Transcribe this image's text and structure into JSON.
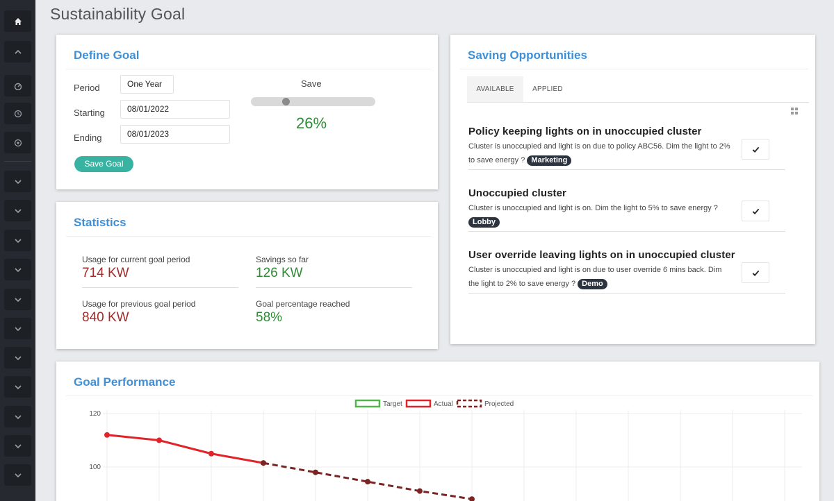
{
  "page": {
    "title": "Sustainability Goal"
  },
  "sidebar": {
    "items": [
      {
        "icon": "home-icon"
      },
      {
        "icon": "chevron-up-icon"
      },
      {
        "icon": "dashboard-icon"
      },
      {
        "icon": "clock-icon"
      },
      {
        "icon": "settings-icon"
      },
      {
        "icon": "chevron-down-icon"
      },
      {
        "icon": "chevron-down-icon"
      },
      {
        "icon": "chevron-down-icon"
      },
      {
        "icon": "chevron-down-icon"
      },
      {
        "icon": "chevron-down-icon"
      },
      {
        "icon": "chevron-down-icon"
      },
      {
        "icon": "chevron-down-icon"
      },
      {
        "icon": "chevron-down-icon"
      },
      {
        "icon": "chevron-down-icon"
      },
      {
        "icon": "chevron-down-icon"
      },
      {
        "icon": "chevron-down-icon"
      }
    ]
  },
  "define_goal": {
    "title": "Define Goal",
    "period_label": "Period",
    "period_value": "One Year",
    "starting_label": "Starting",
    "starting_value": "08/01/2022",
    "ending_label": "Ending",
    "ending_value": "08/01/2023",
    "save_button": "Save Goal",
    "save_label": "Save",
    "save_value": 26,
    "save_percent": "26%"
  },
  "statistics": {
    "title": "Statistics",
    "usage_current_label": "Usage for current goal period",
    "usage_current_value": "714 KW",
    "savings_label": "Savings so far",
    "savings_value": "126 KW",
    "usage_previous_label": "Usage for previous goal period",
    "usage_previous_value": "840 KW",
    "goal_pct_label": "Goal percentage reached",
    "goal_pct_value": "58%"
  },
  "saving_opportunities": {
    "title": "Saving Opportunities",
    "tabs": [
      {
        "label": "AVAILABLE",
        "active": true
      },
      {
        "label": "APPLIED",
        "active": false
      }
    ],
    "items": [
      {
        "title": "Policy keeping lights on in unoccupied cluster",
        "description": "Cluster is unoccupied and light is on due to policy ABC56. Dim the light to 2% to save energy ?",
        "badge": "Marketing"
      },
      {
        "title": "Unoccupied cluster",
        "description": "Cluster is unoccupied and light is on. Dim the light to 5% to save energy ?",
        "badge": "Lobby"
      },
      {
        "title": "User override leaving lights on in unoccupied cluster",
        "description": "Cluster is unoccupied and light is on due to user override 6 mins back. Dim the light to 2% to save energy ?",
        "badge": "Demo"
      }
    ]
  },
  "goal_performance": {
    "title": "Goal Performance"
  },
  "chart_data": {
    "type": "line",
    "legend": [
      "Target",
      "Actual",
      "Projected"
    ],
    "legend_placement": "top-center",
    "grid": true,
    "y_ticks": [
      100,
      120
    ],
    "ylim": [
      87,
      120
    ],
    "colors": {
      "Target": "#52b44a",
      "Actual": "#e0242a",
      "Projected": "#7a2424"
    },
    "series": [
      {
        "name": "Actual",
        "x": [
          0,
          1,
          2,
          3
        ],
        "values": [
          112,
          110,
          105,
          101.5
        ]
      },
      {
        "name": "Projected",
        "x": [
          3,
          4,
          5,
          6,
          7
        ],
        "values": [
          101.5,
          98,
          94.5,
          91,
          88
        ]
      }
    ],
    "x_count": 14
  }
}
